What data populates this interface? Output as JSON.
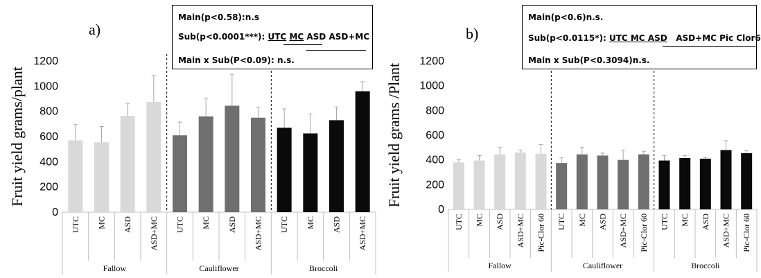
{
  "colors": {
    "fallow": "#d9d9d9",
    "cauliflower": "#6f6f6f",
    "broccoli": "#0a0a0a",
    "error_bar": "#a6a6a6",
    "axis": "#bfbfbf"
  },
  "chart_data": [
    {
      "type": "bar",
      "panel_label": "a)",
      "ylabel": "Fruit yield grams/plant",
      "ylim": [
        0,
        1200
      ],
      "yticks": [
        "0",
        "200",
        "400",
        "600",
        "800",
        "1000",
        "1200"
      ],
      "groups": [
        {
          "name": "Fallow",
          "color_key": "fallow",
          "categories": [
            "UTC",
            "MC",
            "ASD",
            "ASD+MC"
          ],
          "values": [
            570,
            555,
            765,
            875
          ],
          "errors": [
            125,
            125,
            95,
            210
          ]
        },
        {
          "name": "Cauliflower",
          "color_key": "cauliflower",
          "categories": [
            "UTC",
            "MC",
            "ASD",
            "ASD+MC"
          ],
          "values": [
            610,
            760,
            845,
            750
          ],
          "errors": [
            105,
            145,
            250,
            80
          ]
        },
        {
          "name": "Broccoli",
          "color_key": "broccoli",
          "categories": [
            "UTC",
            "MC",
            "ASD",
            "ASD+MC"
          ],
          "values": [
            670,
            625,
            730,
            960
          ],
          "errors": [
            150,
            155,
            105,
            75
          ]
        }
      ],
      "stats": {
        "main": "Main(p<0.58):n.s",
        "sub_prefix": "Sub(p<0.0001***): ",
        "sub_terms": [
          "UTC",
          "MC",
          "ASD",
          "ASD+MC"
        ],
        "interaction": "Main x Sub(P<0.09): n.s."
      }
    },
    {
      "type": "bar",
      "panel_label": "b)",
      "ylabel": "Fruit yield grams /Plant",
      "ylim": [
        0,
        1200
      ],
      "yticks": [
        "0",
        "200",
        "400",
        "600",
        "800",
        "1000",
        "1200"
      ],
      "groups": [
        {
          "name": "Fallow",
          "color_key": "fallow",
          "categories": [
            "UTC",
            "MC",
            "ASD",
            "ASD+MC",
            "Pic-Clor 60"
          ],
          "values": [
            380,
            395,
            445,
            460,
            450
          ],
          "errors": [
            25,
            40,
            55,
            20,
            75
          ]
        },
        {
          "name": "Cauliflower",
          "color_key": "cauliflower",
          "categories": [
            "UTC",
            "MC",
            "ASD",
            "ASD+MC",
            "Pic-Clor 60"
          ],
          "values": [
            375,
            445,
            435,
            400,
            445
          ],
          "errors": [
            45,
            55,
            20,
            80,
            25
          ]
        },
        {
          "name": "Broccoli",
          "color_key": "broccoli",
          "categories": [
            "UTC",
            "MC",
            "ASD",
            "ASD+MC",
            "Pic-Clor 60"
          ],
          "values": [
            395,
            415,
            410,
            480,
            455
          ],
          "errors": [
            40,
            20,
            10,
            75,
            20
          ]
        }
      ],
      "stats": {
        "main": "Main(p<0.6)n.s.",
        "sub_prefix": "Sub(p<0.0115*): ",
        "sub_terms": [
          "UTC MC ASD",
          "ASD+MC Pic Clor6"
        ],
        "interaction": "Main x Sub(P<0.3094)n.s."
      }
    }
  ]
}
